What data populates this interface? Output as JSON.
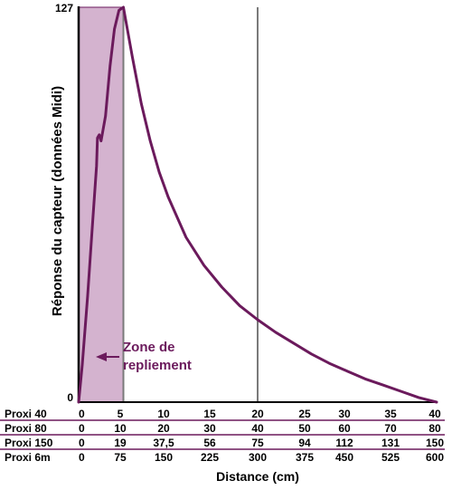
{
  "chart_data": {
    "type": "line",
    "ylabel": "Réponse du capteur (données Midi)",
    "xlabel": "Distance (cm)",
    "ylim": [
      0,
      127
    ],
    "xlim": [
      0,
      40
    ],
    "y_ticks": [
      "0",
      "127"
    ],
    "annotation": [
      "Zone de",
      "repliement"
    ],
    "shaded_region": [
      0,
      5
    ],
    "vertical_lines": [
      5,
      20
    ],
    "grid": false,
    "colors": {
      "curve": "#6b1a5c",
      "shade": "#d4b3cf",
      "axis": "#000000",
      "vline": "#7a7a7a",
      "annotation": "#6b1a5c"
    },
    "series": [
      {
        "x": [
          0,
          0.4,
          1,
          1.5,
          2,
          2.1,
          2.3,
          2.5,
          3,
          3.5,
          4,
          4.5,
          5,
          6,
          7,
          8,
          9,
          10,
          12,
          14,
          16,
          18,
          20,
          22,
          24,
          26,
          28,
          30,
          32,
          34,
          36,
          38,
          40
        ],
        "values": [
          0,
          12,
          34,
          55,
          76,
          85,
          86,
          84,
          92,
          108,
          120,
          126,
          127,
          111,
          96,
          84,
          74,
          66,
          53,
          44,
          37,
          31,
          26.5,
          22.5,
          19,
          15.5,
          12.5,
          10,
          7.5,
          5.5,
          3.5,
          1.5,
          0
        ]
      }
    ]
  },
  "table": {
    "rows": [
      {
        "label": "Proxi 40",
        "values": [
          "0",
          "5",
          "10",
          "15",
          "20",
          "25",
          "30",
          "35",
          "40"
        ]
      },
      {
        "label": "Proxi 80",
        "values": [
          "0",
          "10",
          "20",
          "30",
          "40",
          "50",
          "60",
          "70",
          "80"
        ]
      },
      {
        "label": "Proxi 150",
        "values": [
          "0",
          "19",
          "37,5",
          "56",
          "75",
          "94",
          "112",
          "131",
          "150"
        ]
      },
      {
        "label": "Proxi 6m",
        "values": [
          "0",
          "75",
          "150",
          "225",
          "300",
          "375",
          "450",
          "525",
          "600"
        ]
      }
    ]
  }
}
